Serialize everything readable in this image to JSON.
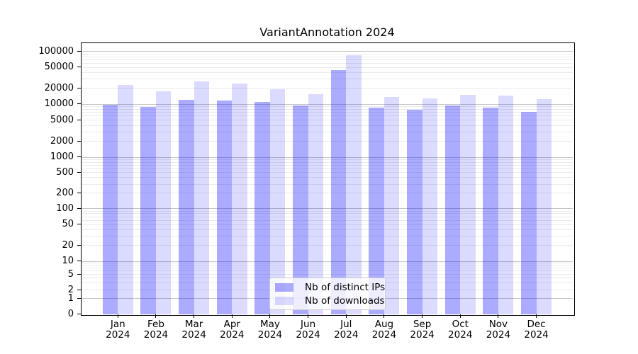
{
  "title": "VariantAnnotation 2024",
  "chart_data": {
    "type": "bar",
    "title": "VariantAnnotation 2024",
    "categories": [
      "Jan 2024",
      "Feb 2024",
      "Mar 2024",
      "Apr 2024",
      "May 2024",
      "Jun 2024",
      "Jul 2024",
      "Aug 2024",
      "Sep 2024",
      "Oct 2024",
      "Nov 2024",
      "Dec 2024"
    ],
    "series": [
      {
        "name": "Nb of distinct IPs",
        "color": "rgba(0,0,255,0.33)",
        "values": [
          9600,
          8800,
          11800,
          11500,
          11000,
          9200,
          44000,
          8500,
          7700,
          9200,
          8600,
          7000
        ]
      },
      {
        "name": "Nb of downloads",
        "color": "rgba(0,0,255,0.14)",
        "values": [
          23000,
          17500,
          27000,
          24500,
          19000,
          15100,
          85000,
          13700,
          12700,
          14800,
          14400,
          12300
        ]
      }
    ],
    "xlabel": "",
    "ylabel": "",
    "yscale": "log-like",
    "ylim": [
      0,
      100000
    ],
    "yticks": [
      100000,
      50000,
      20000,
      10000,
      5000,
      2000,
      1000,
      500,
      200,
      100,
      50,
      20,
      10,
      5,
      2,
      1,
      0
    ],
    "ytick_labels": [
      "100000",
      "50000",
      "20000",
      "10000",
      "5000",
      "2000",
      "1000",
      "500",
      "200",
      "100",
      "50",
      "20",
      "10",
      "5",
      "2",
      "1",
      "0"
    ],
    "grid": true,
    "grid_major_color": "#c6c6c6",
    "grid_minor_color": "#ebebeb",
    "axis_color": "#000000",
    "legend_position": "bottom-center"
  }
}
